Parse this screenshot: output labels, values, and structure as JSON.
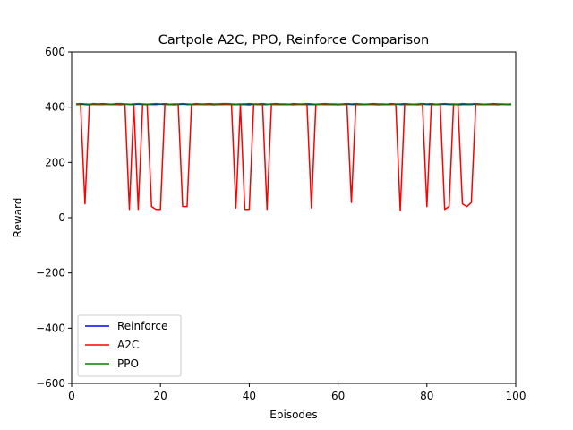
{
  "chart_data": {
    "type": "line",
    "title": "Cartpole A2C, PPO, Reinforce Comparison",
    "xlabel": "Episodes",
    "ylabel": "Reward",
    "xlim": [
      0,
      100
    ],
    "ylim": [
      -600,
      600
    ],
    "xticks": [
      0,
      20,
      40,
      60,
      80,
      100
    ],
    "yticks": [
      -600,
      -400,
      -200,
      0,
      200,
      400,
      600
    ],
    "grid": false,
    "legend_position": "lower-left",
    "series": [
      {
        "name": "Reinforce",
        "color": "#0000ff",
        "x": [
          1,
          2,
          3,
          4,
          5,
          6,
          7,
          8,
          9,
          10,
          11,
          12,
          13,
          14,
          15,
          16,
          17,
          18,
          19,
          20,
          21,
          22,
          23,
          24,
          25,
          26,
          27,
          28,
          29,
          30,
          31,
          32,
          33,
          34,
          35,
          36,
          37,
          38,
          39,
          40,
          41,
          42,
          43,
          44,
          45,
          46,
          47,
          48,
          49,
          50,
          51,
          52,
          53,
          54,
          55,
          56,
          57,
          58,
          59,
          60,
          61,
          62,
          63,
          64,
          65,
          66,
          67,
          68,
          69,
          70,
          71,
          72,
          73,
          74,
          75,
          76,
          77,
          78,
          79,
          80,
          81,
          82,
          83,
          84,
          85,
          86,
          87,
          88,
          89,
          90,
          91,
          92,
          93,
          94,
          95,
          96,
          97,
          98,
          99
        ],
        "values": [
          410,
          411,
          410,
          409,
          411,
          410,
          410,
          411,
          410,
          410,
          409,
          411,
          410,
          410,
          411,
          410,
          410,
          410,
          410,
          411,
          410,
          410,
          409,
          410,
          411,
          410,
          410,
          410,
          411,
          410,
          410,
          409,
          410,
          410,
          411,
          410,
          410,
          410,
          410,
          409,
          411,
          410,
          410,
          410,
          411,
          410,
          410,
          410,
          410,
          409,
          411,
          410,
          410,
          410,
          410,
          411,
          410,
          410,
          410,
          409,
          410,
          411,
          410,
          410,
          410,
          410,
          411,
          410,
          409,
          410,
          410,
          410,
          411,
          410,
          410,
          410,
          410,
          409,
          411,
          410,
          410,
          410,
          410,
          411,
          410,
          410,
          409,
          410,
          410,
          410,
          411,
          410,
          410,
          410,
          410,
          409,
          411,
          410,
          410
        ]
      },
      {
        "name": "A2C",
        "color": "#ff0000",
        "x": [
          1,
          2,
          3,
          4,
          5,
          6,
          7,
          8,
          9,
          10,
          11,
          12,
          13,
          14,
          15,
          16,
          17,
          18,
          19,
          20,
          21,
          22,
          23,
          24,
          25,
          26,
          27,
          28,
          29,
          30,
          31,
          32,
          33,
          34,
          35,
          36,
          37,
          38,
          39,
          40,
          41,
          42,
          43,
          44,
          45,
          46,
          47,
          48,
          49,
          50,
          51,
          52,
          53,
          54,
          55,
          56,
          57,
          58,
          59,
          60,
          61,
          62,
          63,
          64,
          65,
          66,
          67,
          68,
          69,
          70,
          71,
          72,
          73,
          74,
          75,
          76,
          77,
          78,
          79,
          80,
          81,
          82,
          83,
          84,
          85,
          86,
          87,
          88,
          89,
          90,
          91,
          92,
          93,
          94,
          95,
          96,
          97,
          98,
          99
        ],
        "values": [
          410,
          410,
          50,
          410,
          410,
          410,
          410,
          410,
          410,
          410,
          410,
          410,
          30,
          410,
          30,
          410,
          410,
          40,
          30,
          30,
          410,
          410,
          410,
          410,
          40,
          40,
          410,
          410,
          410,
          410,
          410,
          410,
          410,
          410,
          410,
          410,
          35,
          410,
          30,
          30,
          410,
          410,
          410,
          30,
          410,
          410,
          410,
          410,
          410,
          410,
          410,
          410,
          410,
          35,
          410,
          410,
          410,
          410,
          410,
          410,
          410,
          410,
          55,
          410,
          410,
          410,
          410,
          410,
          410,
          410,
          410,
          410,
          410,
          25,
          410,
          410,
          410,
          410,
          410,
          40,
          410,
          410,
          410,
          30,
          40,
          410,
          410,
          50,
          40,
          55,
          410,
          410,
          410,
          410,
          410,
          410,
          410,
          410,
          410
        ]
      },
      {
        "name": "PPO",
        "color": "#008000",
        "x": [
          1,
          2,
          3,
          4,
          5,
          6,
          7,
          8,
          9,
          10,
          11,
          12,
          13,
          14,
          15,
          16,
          17,
          18,
          19,
          20,
          21,
          22,
          23,
          24,
          25,
          26,
          27,
          28,
          29,
          30,
          31,
          32,
          33,
          34,
          35,
          36,
          37,
          38,
          39,
          40,
          41,
          42,
          43,
          44,
          45,
          46,
          47,
          48,
          49,
          50,
          51,
          52,
          53,
          54,
          55,
          56,
          57,
          58,
          59,
          60,
          61,
          62,
          63,
          64,
          65,
          66,
          67,
          68,
          69,
          70,
          71,
          72,
          73,
          74,
          75,
          76,
          77,
          78,
          79,
          80,
          81,
          82,
          83,
          84,
          85,
          86,
          87,
          88,
          89,
          90,
          91,
          92,
          93,
          94,
          95,
          96,
          97,
          98,
          99
        ],
        "values": [
          412,
          413,
          412,
          411,
          413,
          412,
          413,
          412,
          411,
          413,
          413,
          412,
          411,
          412,
          413,
          412,
          411,
          412,
          413,
          412,
          413,
          411,
          412,
          412,
          413,
          412,
          411,
          413,
          412,
          412,
          413,
          412,
          412,
          413,
          413,
          412,
          411,
          412,
          412,
          413,
          412,
          412,
          413,
          411,
          412,
          413,
          412,
          412,
          411,
          413,
          412,
          412,
          413,
          412,
          411,
          412,
          413,
          412,
          412,
          411,
          412,
          413,
          412,
          413,
          412,
          411,
          412,
          413,
          412,
          412,
          411,
          413,
          412,
          412,
          413,
          412,
          411,
          412,
          413,
          412,
          413,
          411,
          412,
          413,
          412,
          412,
          411,
          413,
          412,
          412,
          413,
          412,
          411,
          412,
          413,
          412,
          412,
          411,
          412
        ]
      }
    ]
  }
}
